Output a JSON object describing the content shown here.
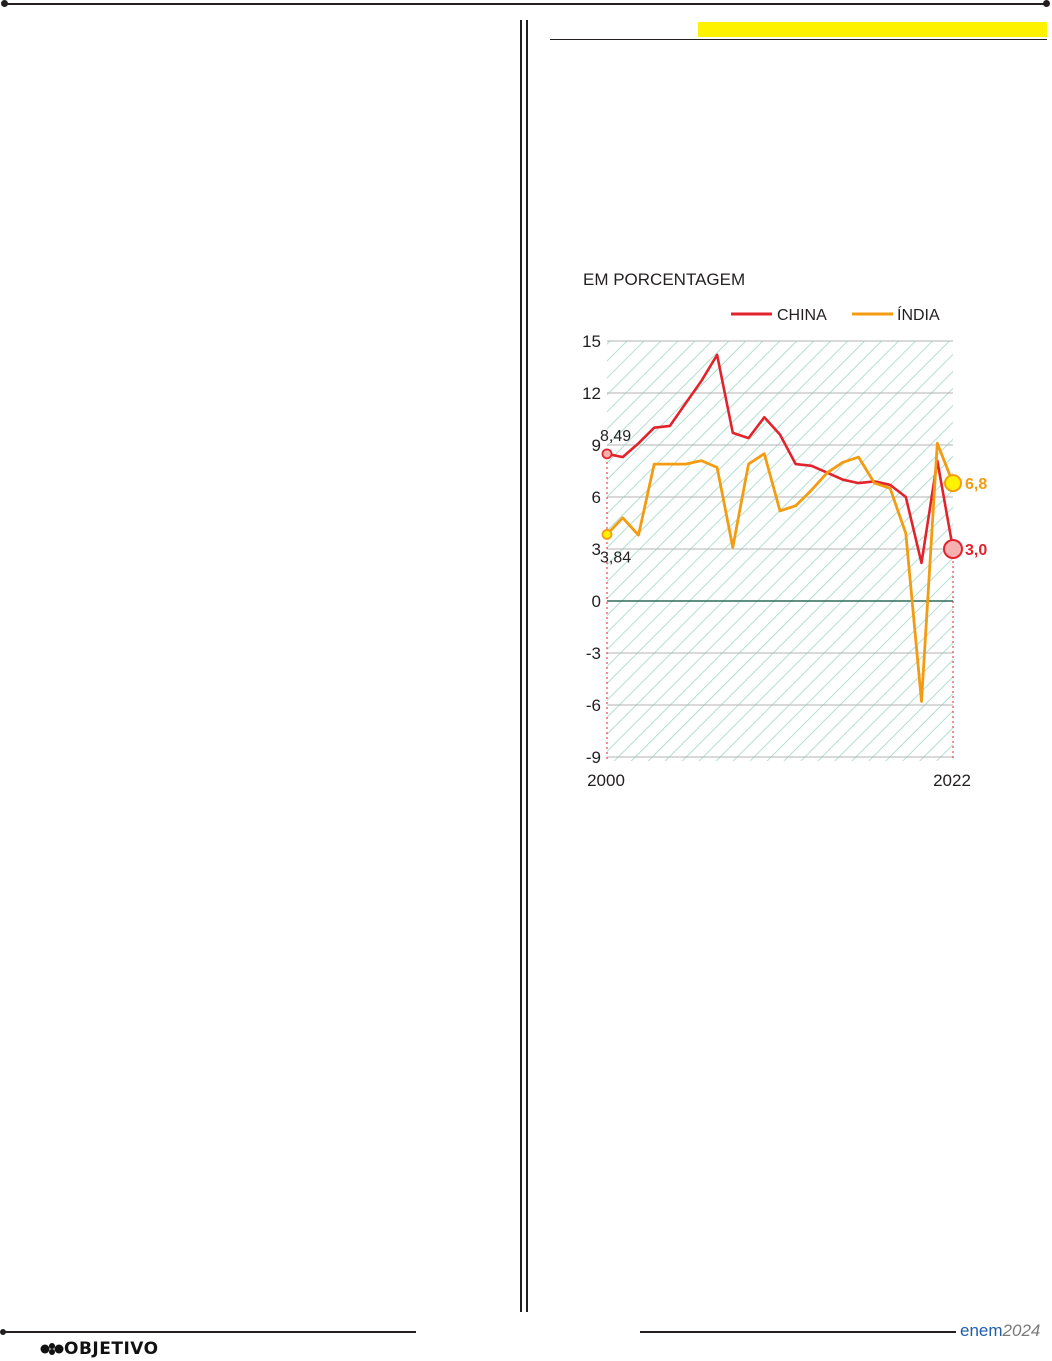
{
  "footer": {
    "logo_label": "OBJETIVO",
    "exam_label": "enem",
    "exam_year": "2024"
  },
  "colors": {
    "china": "#e3232c",
    "india": "#f39c12",
    "highlight_bar": "#fff200",
    "hatch": "#a9dccd",
    "grid": "#b3b3b3",
    "zero_line": "#2e6b5a"
  },
  "chart_data": {
    "type": "line",
    "title": "EM PORCENTAGEM",
    "ylim": [
      -9,
      15
    ],
    "yticks": [
      15,
      12,
      9,
      6,
      3,
      0,
      -3,
      -6,
      -9
    ],
    "x_tick_labels": [
      "2000",
      "2022"
    ],
    "x": [
      2000,
      2001,
      2002,
      2003,
      2004,
      2005,
      2006,
      2007,
      2008,
      2009,
      2010,
      2011,
      2012,
      2013,
      2014,
      2015,
      2016,
      2017,
      2018,
      2019,
      2020,
      2021,
      2022
    ],
    "grid": true,
    "legend_position": "top-right",
    "series": [
      {
        "name": "CHINA",
        "color": "#e3232c",
        "values": [
          8.49,
          8.3,
          9.1,
          10.0,
          10.1,
          11.4,
          12.7,
          14.2,
          9.7,
          9.4,
          10.6,
          9.6,
          7.9,
          7.8,
          7.4,
          7.0,
          6.8,
          6.9,
          6.7,
          6.0,
          2.2,
          8.1,
          3.0
        ],
        "start_label": "8,49",
        "end_label": "3,0"
      },
      {
        "name": "ÍNDIA",
        "color": "#f39c12",
        "values": [
          3.84,
          4.8,
          3.8,
          7.9,
          7.9,
          7.9,
          8.1,
          7.7,
          3.1,
          7.9,
          8.5,
          5.2,
          5.5,
          6.4,
          7.4,
          8.0,
          8.3,
          6.8,
          6.5,
          3.9,
          -5.8,
          9.1,
          6.8
        ],
        "start_label": "3,84",
        "end_label": "6,8"
      }
    ]
  }
}
